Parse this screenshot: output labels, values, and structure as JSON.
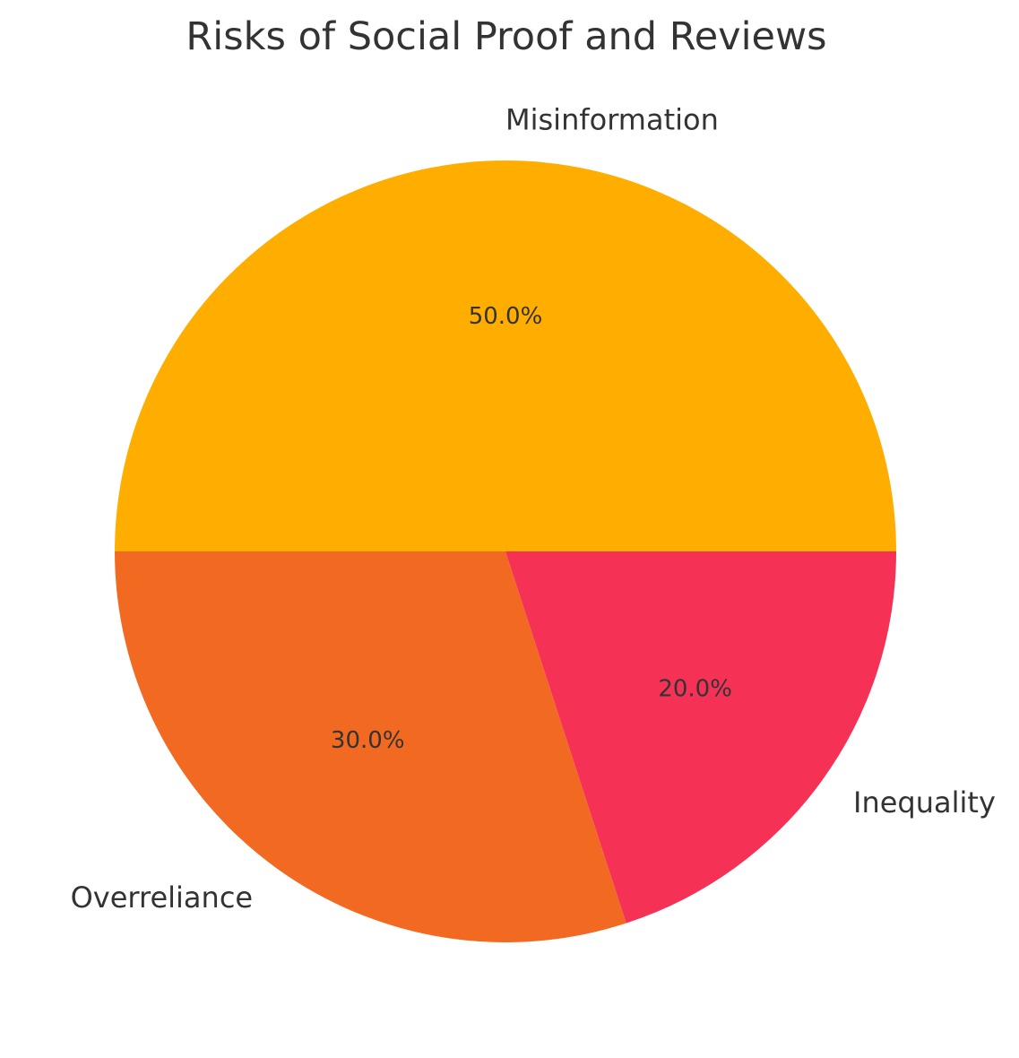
{
  "chart_data": {
    "type": "pie",
    "title": "Risks of Social Proof and Reviews",
    "categories": [
      "Misinformation",
      "Overreliance",
      "Inequality"
    ],
    "values": [
      50,
      30,
      20
    ],
    "percent_labels": [
      "50.0%",
      "30.0%",
      "20.0%"
    ],
    "colors": [
      "#FFAE00",
      "#F26A21",
      "#F53256"
    ],
    "start_angle_deg": 0,
    "direction": "counterclockwise",
    "legend": "none"
  }
}
